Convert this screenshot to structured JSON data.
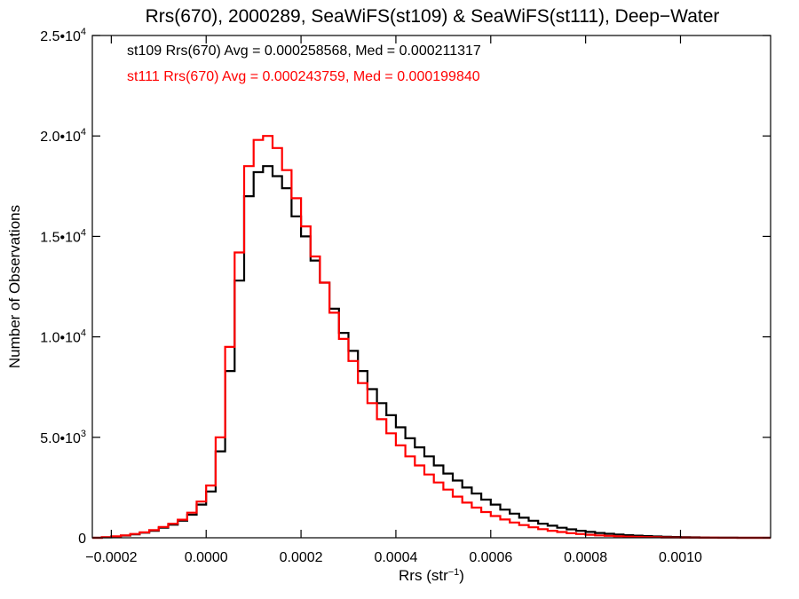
{
  "chart_data": {
    "type": "line",
    "step": true,
    "title": "Rrs(670), 2000289, SeaWiFS(st109) & SeaWiFS(st111), Deep−Water",
    "xlabel": {
      "main": "Rrs (str",
      "sup": "−1",
      "close": ")"
    },
    "ylabel": "Number of Observations",
    "xlim": [
      -0.00024,
      0.00119
    ],
    "ylim": [
      0,
      25000
    ],
    "grid": false,
    "x_ticks": [
      {
        "value": -0.0002,
        "label": "−0.0002"
      },
      {
        "value": 0.0,
        "label": "0.0000"
      },
      {
        "value": 0.0002,
        "label": "0.0002"
      },
      {
        "value": 0.0004,
        "label": "0.0004"
      },
      {
        "value": 0.0006,
        "label": "0.0006"
      },
      {
        "value": 0.0008,
        "label": "0.0008"
      },
      {
        "value": 0.001,
        "label": "0.0010"
      }
    ],
    "y_ticks": [
      {
        "value": 0,
        "mantissa": "0",
        "exp": ""
      },
      {
        "value": 5000,
        "mantissa": "5.0•10",
        "exp": "3"
      },
      {
        "value": 10000,
        "mantissa": "1.0•10",
        "exp": "4"
      },
      {
        "value": 15000,
        "mantissa": "1.5•10",
        "exp": "4"
      },
      {
        "value": 20000,
        "mantissa": "2.0•10",
        "exp": "4"
      },
      {
        "value": 25000,
        "mantissa": "2.5•10",
        "exp": "4"
      }
    ],
    "legend": {
      "placement": "top-left",
      "entries": [
        {
          "text": "st109 Rrs(670) Avg = 0.000258568, Med = 0.000211317",
          "color": "#000000"
        },
        {
          "text": "st111 Rrs(670) Avg = 0.000243759, Med = 0.000199840",
          "color": "#ff0000"
        }
      ]
    },
    "series": [
      {
        "name": "st109",
        "color": "#000000",
        "x": [
          -0.00024,
          -0.00022,
          -0.0002,
          -0.00018,
          -0.00016,
          -0.00014,
          -0.00012,
          -0.0001,
          -8e-05,
          -6e-05,
          -4e-05,
          -2e-05,
          0.0,
          2e-05,
          4e-05,
          6e-05,
          8e-05,
          0.0001,
          0.00012,
          0.00014,
          0.00016,
          0.00018,
          0.0002,
          0.00022,
          0.00024,
          0.00026,
          0.00028,
          0.0003,
          0.00032,
          0.00034,
          0.00036,
          0.00038,
          0.0004,
          0.00042,
          0.00044,
          0.00046,
          0.00048,
          0.0005,
          0.00052,
          0.00054,
          0.00056,
          0.00058,
          0.0006,
          0.00062,
          0.00064,
          0.00066,
          0.00068,
          0.0007,
          0.00072,
          0.00074,
          0.00076,
          0.00078,
          0.0008,
          0.00082,
          0.00084,
          0.00086,
          0.00088,
          0.0009,
          0.00092,
          0.00094,
          0.00096,
          0.00098,
          0.001,
          0.00102,
          0.00104,
          0.00106,
          0.00108,
          0.0011,
          0.00112,
          0.00114,
          0.00116,
          0.00118
        ],
        "values": [
          0,
          20,
          60,
          110,
          170,
          250,
          350,
          500,
          650,
          850,
          1150,
          1650,
          2300,
          4300,
          8300,
          12800,
          17000,
          18200,
          18500,
          18000,
          17400,
          16000,
          15000,
          13800,
          12700,
          11400,
          10200,
          9300,
          8300,
          7400,
          6700,
          6100,
          5500,
          4950,
          4500,
          4050,
          3600,
          3200,
          2850,
          2500,
          2200,
          1900,
          1650,
          1400,
          1200,
          1000,
          850,
          700,
          600,
          500,
          420,
          350,
          290,
          240,
          200,
          165,
          130,
          105,
          85,
          65,
          50,
          40,
          30,
          22,
          15,
          10,
          7,
          4,
          2,
          1,
          0,
          0
        ]
      },
      {
        "name": "st111",
        "color": "#ff0000",
        "x": [
          -0.00024,
          -0.00022,
          -0.0002,
          -0.00018,
          -0.00016,
          -0.00014,
          -0.00012,
          -0.0001,
          -8e-05,
          -6e-05,
          -4e-05,
          -2e-05,
          0.0,
          2e-05,
          4e-05,
          6e-05,
          8e-05,
          0.0001,
          0.00012,
          0.00014,
          0.00016,
          0.00018,
          0.0002,
          0.00022,
          0.00024,
          0.00026,
          0.00028,
          0.0003,
          0.00032,
          0.00034,
          0.00036,
          0.00038,
          0.0004,
          0.00042,
          0.00044,
          0.00046,
          0.00048,
          0.0005,
          0.00052,
          0.00054,
          0.00056,
          0.00058,
          0.0006,
          0.00062,
          0.00064,
          0.00066,
          0.00068,
          0.0007,
          0.00072,
          0.00074,
          0.00076,
          0.00078,
          0.0008,
          0.00082,
          0.00084,
          0.00086,
          0.00088,
          0.0009,
          0.00092,
          0.00094,
          0.00096,
          0.00098,
          0.001,
          0.00102,
          0.00104,
          0.00106,
          0.00108,
          0.0011,
          0.00112,
          0.00114,
          0.00116,
          0.00118
        ],
        "values": [
          0,
          25,
          70,
          120,
          190,
          270,
          380,
          540,
          700,
          900,
          1250,
          1800,
          2600,
          5000,
          9500,
          14200,
          18500,
          19800,
          20000,
          19400,
          18300,
          16900,
          15500,
          14000,
          12700,
          11200,
          9900,
          8800,
          7700,
          6700,
          5900,
          5200,
          4600,
          4050,
          3600,
          3150,
          2750,
          2400,
          2050,
          1750,
          1500,
          1280,
          1080,
          910,
          760,
          630,
          520,
          430,
          350,
          285,
          230,
          185,
          150,
          120,
          95,
          75,
          58,
          45,
          34,
          26,
          19,
          14,
          10,
          7,
          5,
          3,
          2,
          1,
          0,
          0,
          0,
          0
        ]
      }
    ]
  }
}
